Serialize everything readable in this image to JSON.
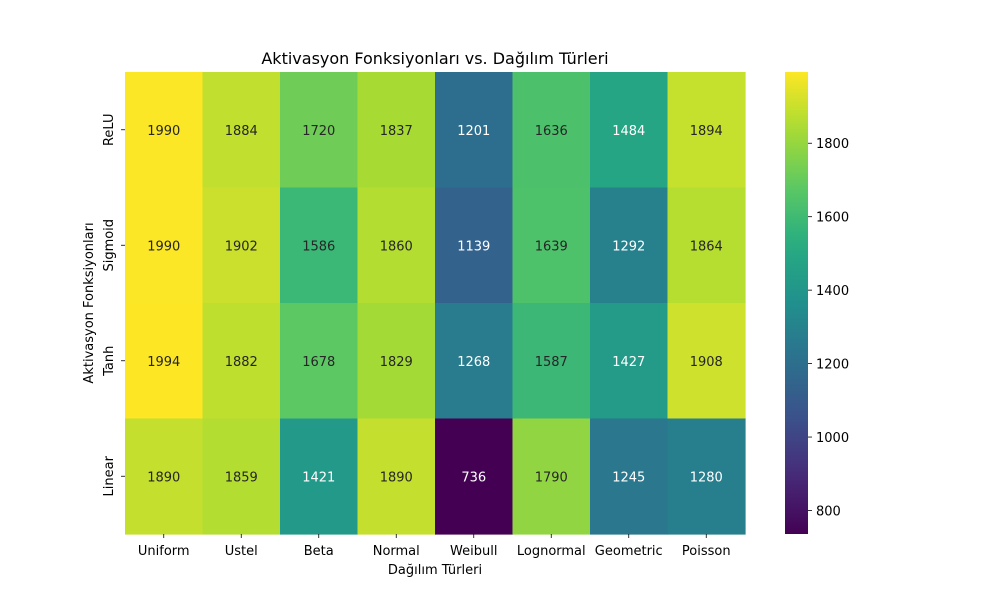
{
  "chart_data": {
    "type": "heatmap",
    "title": "Aktivasyon Fonksiyonları vs. Dağılım Türleri",
    "xlabel": "Dağılım Türleri",
    "ylabel": "Aktivasyon Fonksiyonları",
    "x_categories": [
      "Uniform",
      "Ustel",
      "Beta",
      "Normal",
      "Weibull",
      "Lognormal",
      "Geometric",
      "Poisson"
    ],
    "y_categories": [
      "ReLU",
      "Sigmoid",
      "Tanh",
      "Linear"
    ],
    "values": [
      [
        1990,
        1884,
        1720,
        1837,
        1201,
        1636,
        1484,
        1894
      ],
      [
        1990,
        1902,
        1586,
        1860,
        1139,
        1639,
        1292,
        1864
      ],
      [
        1994,
        1882,
        1678,
        1829,
        1268,
        1587,
        1427,
        1908
      ],
      [
        1890,
        1859,
        1421,
        1890,
        736,
        1790,
        1245,
        1280
      ]
    ],
    "colormap": "viridis",
    "vmin": 736,
    "vmax": 1994,
    "colorbar_ticks": [
      800,
      1000,
      1200,
      1400,
      1600,
      1800
    ],
    "annotations": true
  }
}
